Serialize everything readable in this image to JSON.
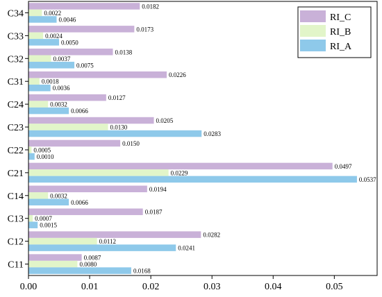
{
  "chart_data": {
    "type": "bar",
    "orientation": "horizontal",
    "title": "",
    "xlabel": "",
    "ylabel": "",
    "xlim": [
      0,
      0.057
    ],
    "x_ticks": [
      "0.00",
      "0.01",
      "0.02",
      "0.03",
      "0.04",
      "0.05"
    ],
    "grid": false,
    "legend_position": "top-right",
    "categories": [
      "C34",
      "C33",
      "C32",
      "C31",
      "C24",
      "C23",
      "C22",
      "C21",
      "C14",
      "C13",
      "C12",
      "C11"
    ],
    "series": [
      {
        "name": "RI_C",
        "color": "#c9b1d8",
        "values": [
          0.0182,
          0.0173,
          0.0138,
          0.0226,
          0.0127,
          0.0205,
          0.015,
          0.0497,
          0.0194,
          0.0187,
          0.0282,
          0.0087
        ],
        "labels": [
          "0.0182",
          "0.0173",
          "0.0138",
          "0.0226",
          "0.0127",
          "0.0205",
          "0.0150",
          "0.0497",
          "0.0194",
          "0.0187",
          "0.0282",
          "0.0087"
        ]
      },
      {
        "name": "RI_B",
        "color": "#e2f5c9",
        "values": [
          0.0022,
          0.0024,
          0.0037,
          0.0018,
          0.0032,
          0.013,
          0.0005,
          0.0229,
          0.0032,
          0.0007,
          0.0112,
          0.008
        ],
        "labels": [
          "0.0022",
          "0.0024",
          "0.0037",
          "0.0018",
          "0.0032",
          "0.0130",
          "0.0005",
          "0.0229",
          "0.0032",
          "0.0007",
          "0.0112",
          "0.0080"
        ]
      },
      {
        "name": "RI_A",
        "color": "#8ec9ea",
        "values": [
          0.0046,
          0.005,
          0.0075,
          0.0036,
          0.0066,
          0.0283,
          0.001,
          0.0537,
          0.0066,
          0.0015,
          0.0241,
          0.0168
        ],
        "labels": [
          "0.0046",
          "0.0050",
          "0.0075",
          "0.0036",
          "0.0066",
          "0.0283",
          "0.0010",
          "0.0537",
          "0.0066",
          "0.0015",
          "0.0241",
          "0.0168"
        ]
      }
    ]
  }
}
